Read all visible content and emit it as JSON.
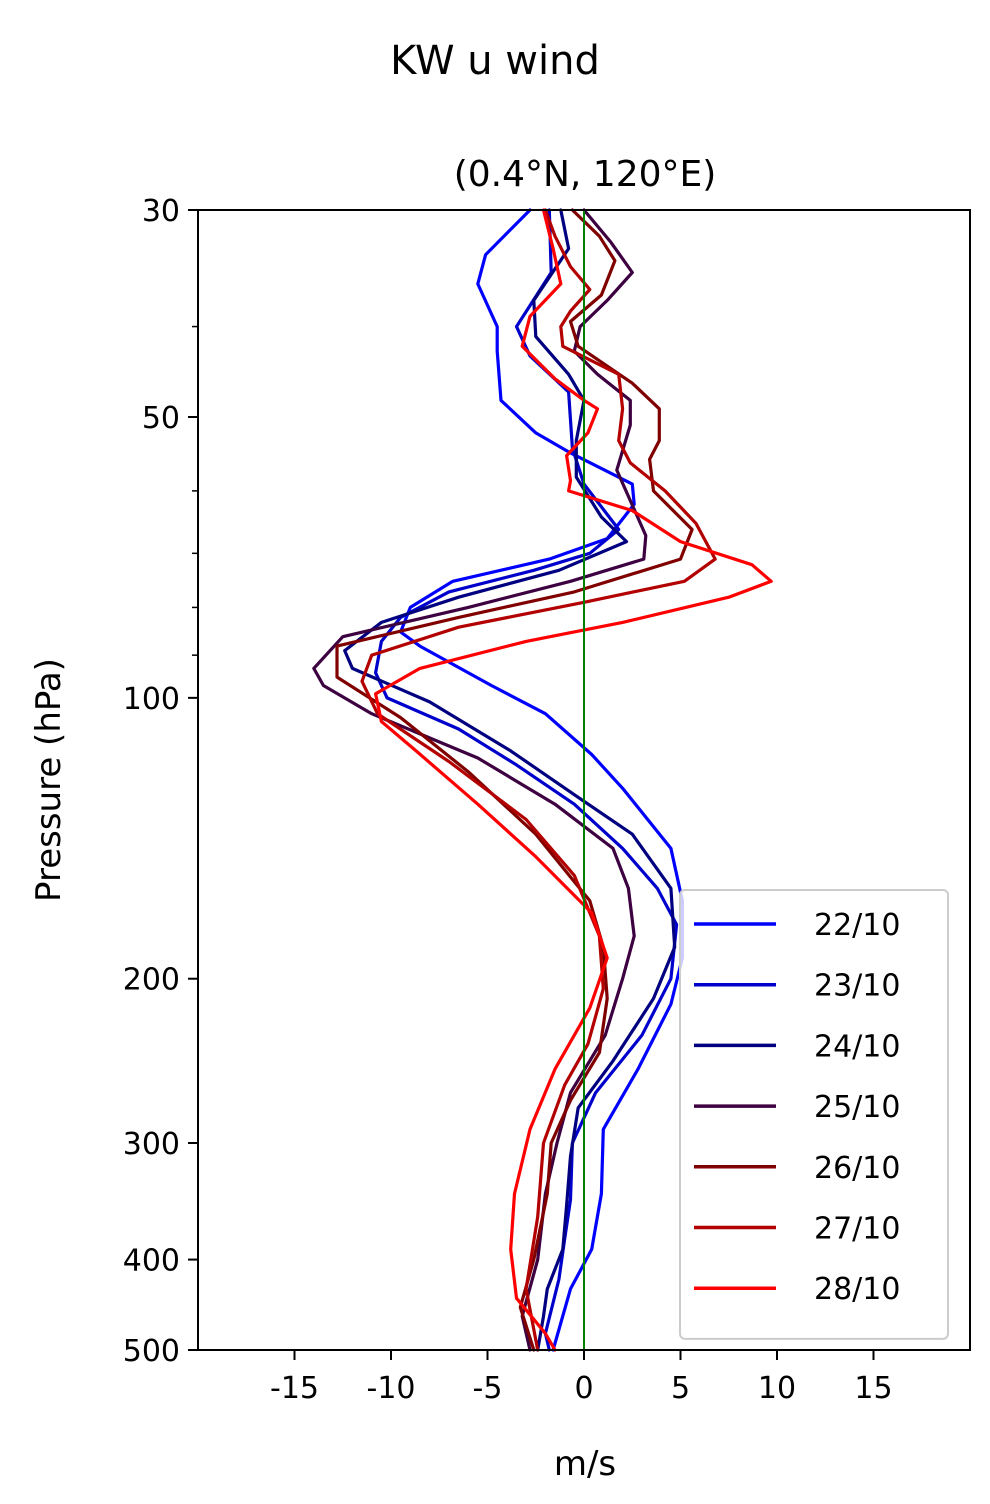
{
  "chart_data": {
    "type": "line",
    "title": "KW u wind",
    "subtitle": "(0.4°N, 120°E)",
    "xlabel": "m/s",
    "ylabel": "Pressure (hPa)",
    "xlim": [
      -20,
      20
    ],
    "ylim": [
      500,
      30
    ],
    "y_scale": "log",
    "x_ticks": [
      -15,
      -10,
      -5,
      0,
      5,
      10,
      15
    ],
    "x_tick_labels": [
      "-15",
      "-10",
      "-5",
      "0",
      "5",
      "10",
      "15"
    ],
    "y_ticks": [
      30,
      50,
      100,
      200,
      300,
      400,
      500
    ],
    "y_tick_labels": [
      "30",
      "50",
      "100",
      "200",
      "300",
      "400",
      "500"
    ],
    "y_minor_ticks": [
      40,
      60,
      70,
      80,
      90
    ],
    "zero_line": {
      "x": 0,
      "color": "#008000"
    },
    "grid": false,
    "legend_position": "lower-right",
    "series": [
      {
        "name": "22/10",
        "color": "#0000ff",
        "points": [
          [
            -2.8,
            30
          ],
          [
            -5.1,
            33.5
          ],
          [
            -5.5,
            36
          ],
          [
            -4.5,
            40
          ],
          [
            -4.5,
            42.5
          ],
          [
            -4.3,
            48
          ],
          [
            -2.5,
            52
          ],
          [
            -0.8,
            54.5
          ],
          [
            2.5,
            59
          ],
          [
            2.6,
            62
          ],
          [
            1.2,
            67.5
          ],
          [
            -1.8,
            71
          ],
          [
            -6.8,
            75
          ],
          [
            -9.0,
            80
          ],
          [
            -9.5,
            85
          ],
          [
            -8.5,
            88
          ],
          [
            -4.8,
            97
          ],
          [
            -2.0,
            104
          ],
          [
            0.4,
            115
          ],
          [
            2.0,
            125
          ],
          [
            4.5,
            145
          ],
          [
            5.1,
            165
          ],
          [
            5.1,
            190
          ],
          [
            4.5,
            213
          ],
          [
            2.8,
            250
          ],
          [
            1.0,
            290
          ],
          [
            0.9,
            340
          ],
          [
            0.4,
            390
          ],
          [
            -0.7,
            430
          ],
          [
            -1.6,
            500
          ]
        ]
      },
      {
        "name": "23/10",
        "color": "#0000cc",
        "points": [
          [
            -1.8,
            30
          ],
          [
            -1.7,
            35
          ],
          [
            -3.5,
            40
          ],
          [
            -2.8,
            43
          ],
          [
            -0.8,
            47
          ],
          [
            -0.6,
            54
          ],
          [
            0.0,
            59
          ],
          [
            1.8,
            66
          ],
          [
            0.3,
            70
          ],
          [
            -2.6,
            73
          ],
          [
            -7.0,
            77
          ],
          [
            -9.5,
            82
          ],
          [
            -10.5,
            87
          ],
          [
            -10.8,
            94
          ],
          [
            -10.2,
            100
          ],
          [
            -6.5,
            108
          ],
          [
            -3.5,
            118
          ],
          [
            -0.5,
            130
          ],
          [
            2.0,
            145
          ],
          [
            3.8,
            160
          ],
          [
            4.8,
            175
          ],
          [
            4.5,
            200
          ],
          [
            3.0,
            230
          ],
          [
            0.6,
            265
          ],
          [
            -0.6,
            300
          ],
          [
            -0.7,
            345
          ],
          [
            -1.0,
            380
          ],
          [
            -1.3,
            420
          ],
          [
            -2.0,
            480
          ],
          [
            -1.8,
            500
          ]
        ]
      },
      {
        "name": "24/10",
        "color": "#000080",
        "points": [
          [
            -1.2,
            30
          ],
          [
            -0.8,
            33
          ],
          [
            -2.6,
            37.5
          ],
          [
            -2.5,
            41
          ],
          [
            -0.8,
            45
          ],
          [
            0.0,
            48
          ],
          [
            -0.4,
            53
          ],
          [
            -0.4,
            58
          ],
          [
            0.9,
            64
          ],
          [
            2.2,
            68
          ],
          [
            -1.3,
            73
          ],
          [
            -6.5,
            78
          ],
          [
            -10.5,
            83
          ],
          [
            -12.4,
            89
          ],
          [
            -12.0,
            93
          ],
          [
            -8.0,
            101
          ],
          [
            -3.8,
            114
          ],
          [
            -0.5,
            127
          ],
          [
            2.5,
            140
          ],
          [
            4.5,
            160
          ],
          [
            4.7,
            185
          ],
          [
            3.6,
            210
          ],
          [
            1.5,
            245
          ],
          [
            -0.3,
            275
          ],
          [
            -0.7,
            310
          ],
          [
            -0.9,
            350
          ],
          [
            -1.1,
            390
          ],
          [
            -1.9,
            430
          ],
          [
            -2.1,
            460
          ],
          [
            -2.4,
            500
          ]
        ]
      },
      {
        "name": "25/10",
        "color": "#3d0040",
        "points": [
          [
            0.0,
            30
          ],
          [
            1.4,
            32.5
          ],
          [
            2.5,
            35
          ],
          [
            1.2,
            37.5
          ],
          [
            -0.2,
            40
          ],
          [
            -0.5,
            42.5
          ],
          [
            0.7,
            45
          ],
          [
            2.4,
            48
          ],
          [
            2.4,
            51
          ],
          [
            1.7,
            57
          ],
          [
            3.2,
            67
          ],
          [
            3.1,
            71
          ],
          [
            -0.7,
            75
          ],
          [
            -6.0,
            80
          ],
          [
            -12.5,
            86
          ],
          [
            -14.0,
            93
          ],
          [
            -13.5,
            97
          ],
          [
            -11.0,
            104
          ],
          [
            -5.5,
            116
          ],
          [
            -1.5,
            130
          ],
          [
            1.5,
            145
          ],
          [
            2.3,
            160
          ],
          [
            2.6,
            180
          ],
          [
            2.0,
            200
          ],
          [
            1.1,
            230
          ],
          [
            -0.7,
            265
          ],
          [
            -1.4,
            300
          ],
          [
            -2.0,
            340
          ],
          [
            -2.4,
            400
          ],
          [
            -3.2,
            460
          ],
          [
            -2.8,
            500
          ]
        ]
      },
      {
        "name": "26/10",
        "color": "#800000",
        "points": [
          [
            -0.6,
            30
          ],
          [
            0.8,
            32
          ],
          [
            1.6,
            34
          ],
          [
            0.9,
            37
          ],
          [
            -0.7,
            39.5
          ],
          [
            -0.3,
            42
          ],
          [
            2.5,
            46
          ],
          [
            3.9,
            49
          ],
          [
            3.9,
            53
          ],
          [
            3.4,
            55.5
          ],
          [
            3.6,
            60
          ],
          [
            5.6,
            66
          ],
          [
            5.0,
            71
          ],
          [
            -0.5,
            77
          ],
          [
            -6.5,
            82
          ],
          [
            -12.8,
            88
          ],
          [
            -12.8,
            95
          ],
          [
            -9.5,
            105
          ],
          [
            -6.0,
            120
          ],
          [
            -2.5,
            140
          ],
          [
            0.3,
            165
          ],
          [
            1.0,
            185
          ],
          [
            1.2,
            210
          ],
          [
            0.8,
            240
          ],
          [
            -0.7,
            270
          ],
          [
            -1.7,
            300
          ],
          [
            -1.9,
            340
          ],
          [
            -2.6,
            400
          ],
          [
            -3.3,
            450
          ],
          [
            -2.6,
            500
          ]
        ]
      },
      {
        "name": "27/10",
        "color": "#b30000",
        "points": [
          [
            -2.0,
            30
          ],
          [
            -1.5,
            32
          ],
          [
            -0.7,
            34.5
          ],
          [
            0.3,
            36.5
          ],
          [
            -0.7,
            38.5
          ],
          [
            -1.2,
            40
          ],
          [
            -1.1,
            42
          ],
          [
            1.8,
            45
          ],
          [
            2.0,
            49
          ],
          [
            1.8,
            53
          ],
          [
            2.4,
            56
          ],
          [
            4.2,
            60
          ],
          [
            5.8,
            65
          ],
          [
            6.8,
            71
          ],
          [
            5.2,
            75
          ],
          [
            0.0,
            79
          ],
          [
            -6.5,
            84
          ],
          [
            -11.0,
            90
          ],
          [
            -11.5,
            96
          ],
          [
            -10.7,
            104
          ],
          [
            -7.0,
            117
          ],
          [
            -3.0,
            135
          ],
          [
            -0.5,
            155
          ],
          [
            0.8,
            180
          ],
          [
            1.0,
            205
          ],
          [
            0.2,
            235
          ],
          [
            -1.0,
            260
          ],
          [
            -2.1,
            300
          ],
          [
            -2.4,
            360
          ],
          [
            -3.0,
            430
          ],
          [
            -2.4,
            500
          ]
        ]
      },
      {
        "name": "28/10",
        "color": "#ff0000",
        "points": [
          [
            -2.1,
            30
          ],
          [
            -1.6,
            33
          ],
          [
            -1.2,
            36
          ],
          [
            -2.8,
            39
          ],
          [
            -3.2,
            42
          ],
          [
            -1.5,
            45.5
          ],
          [
            0.0,
            48
          ],
          [
            0.7,
            49
          ],
          [
            0.2,
            52
          ],
          [
            -0.9,
            55
          ],
          [
            -0.7,
            58.5
          ],
          [
            -0.8,
            60
          ],
          [
            2.5,
            63
          ],
          [
            5.0,
            68
          ],
          [
            8.7,
            72
          ],
          [
            9.7,
            75
          ],
          [
            7.5,
            78
          ],
          [
            2.0,
            83
          ],
          [
            -3.0,
            87
          ],
          [
            -8.5,
            93
          ],
          [
            -10.8,
            99
          ],
          [
            -10.5,
            106
          ],
          [
            -8.7,
            114
          ],
          [
            -5.5,
            130
          ],
          [
            -2.5,
            148
          ],
          [
            0.4,
            170
          ],
          [
            1.2,
            190
          ],
          [
            0.3,
            215
          ],
          [
            -1.5,
            250
          ],
          [
            -2.8,
            290
          ],
          [
            -3.6,
            340
          ],
          [
            -3.8,
            390
          ],
          [
            -3.5,
            440
          ],
          [
            -2.0,
            480
          ],
          [
            -1.5,
            500
          ]
        ]
      }
    ]
  }
}
